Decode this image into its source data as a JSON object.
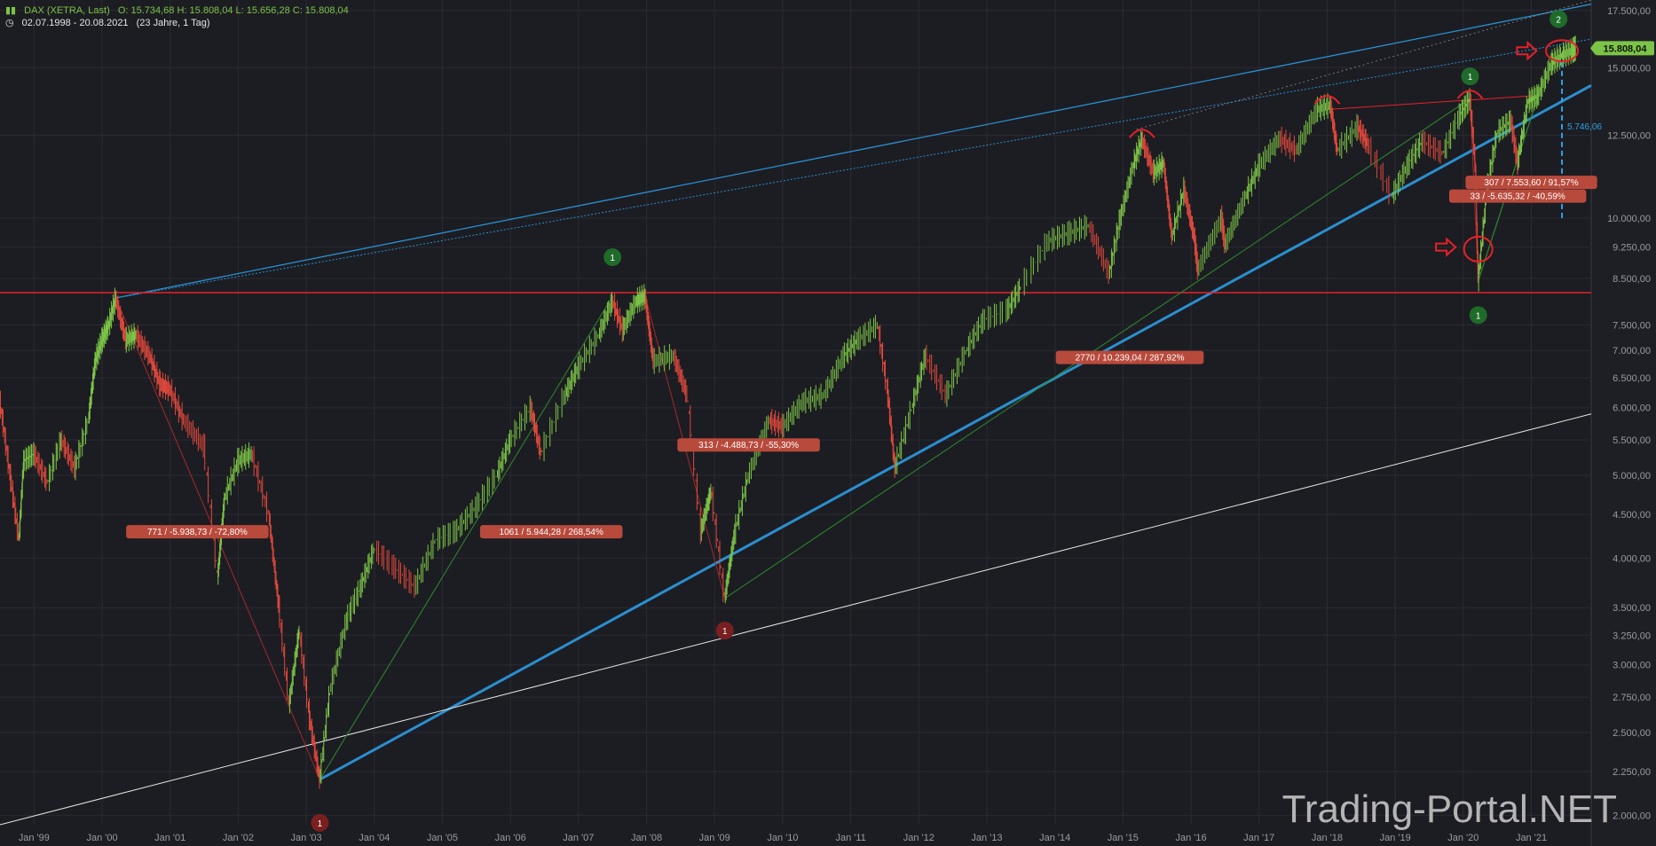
{
  "header": {
    "symbol": "DAX (XETRA, Last)",
    "ohlc": "O: 15.734,68  H: 15.808,04  L: 15.656,28  C: 15.808,04",
    "range": "02.07.1998 - 20.08.2021",
    "duration": "(23 Jahre, 1 Tag)",
    "icons": [
      "candlestick-icon",
      "clock-icon"
    ]
  },
  "watermark": "Trading-Portal.NET",
  "colors": {
    "background": "#1c1d22",
    "up": "#7cc447",
    "down": "#e0483c",
    "trend_blue": "#2a8fd0",
    "resistance_red": "#e8202a",
    "green_line": "#2e8b2e",
    "label_bg": "#b84a3c",
    "price_badge": "#7cc447"
  },
  "chart_data": {
    "type": "line",
    "title": "DAX (XETRA, Last)",
    "x_range": [
      "1998-07-02",
      "2021-08-20"
    ],
    "y_scale": "log",
    "ylim": [
      1950,
      18000
    ],
    "y_ticks": [
      "2.000,00",
      "2.250,00",
      "2.500,00",
      "2.750,00",
      "3.000,00",
      "3.250,00",
      "3.500,00",
      "4.000,00",
      "4.500,00",
      "5.000,00",
      "5.500,00",
      "6.000,00",
      "6.500,00",
      "7.000,00",
      "7.500,00",
      "8.500,00",
      "9.250,00",
      "10.000,00",
      "12.500,00",
      "15.000,00",
      "17.500,00"
    ],
    "y_tick_values": [
      2000,
      2250,
      2500,
      2750,
      3000,
      3250,
      3500,
      4000,
      4500,
      5000,
      5500,
      6000,
      6500,
      7000,
      7500,
      8500,
      9250,
      10000,
      12500,
      15000,
      17500
    ],
    "x_ticks": [
      "Jan '99",
      "Jan '00",
      "Jan '01",
      "Jan '02",
      "Jan '03",
      "Jan '04",
      "Jan '05",
      "Jan '06",
      "Jan '07",
      "Jan '08",
      "Jan '09",
      "Jan '10",
      "Jan '11",
      "Jan '12",
      "Jan '13",
      "Jan '14",
      "Jan '15",
      "Jan '16",
      "Jan '17",
      "Jan '18",
      "Jan '19",
      "Jan '20",
      "Jan '21"
    ],
    "x_tick_values": [
      1999,
      2000,
      2001,
      2002,
      2003,
      2004,
      2005,
      2006,
      2007,
      2008,
      2009,
      2010,
      2011,
      2012,
      2013,
      2014,
      2015,
      2016,
      2017,
      2018,
      2019,
      2020,
      2021
    ],
    "last_price": "15.808,04",
    "series": [
      {
        "points": [
          [
            1998.5,
            6100
          ],
          [
            1998.65,
            5000
          ],
          [
            1998.78,
            4200
          ],
          [
            1998.85,
            5200
          ],
          [
            1999.0,
            5300
          ],
          [
            1999.2,
            4900
          ],
          [
            1999.4,
            5500
          ],
          [
            1999.6,
            5100
          ],
          [
            1999.8,
            5800
          ],
          [
            1999.9,
            6800
          ],
          [
            2000.0,
            7200
          ],
          [
            2000.1,
            7500
          ],
          [
            2000.2,
            8064
          ],
          [
            2000.35,
            7200
          ],
          [
            2000.5,
            7300
          ],
          [
            2000.7,
            6900
          ],
          [
            2000.85,
            6400
          ],
          [
            2001.0,
            6300
          ],
          [
            2001.2,
            5800
          ],
          [
            2001.5,
            5400
          ],
          [
            2001.7,
            3800
          ],
          [
            2001.8,
            4700
          ],
          [
            2002.0,
            5200
          ],
          [
            2002.2,
            5300
          ],
          [
            2002.45,
            4500
          ],
          [
            2002.6,
            3500
          ],
          [
            2002.75,
            2700
          ],
          [
            2002.9,
            3300
          ],
          [
            2003.05,
            2600
          ],
          [
            2003.2,
            2203
          ],
          [
            2003.35,
            2800
          ],
          [
            2003.6,
            3400
          ],
          [
            2003.8,
            3700
          ],
          [
            2004.0,
            4100
          ],
          [
            2004.3,
            3900
          ],
          [
            2004.6,
            3700
          ],
          [
            2004.9,
            4200
          ],
          [
            2005.2,
            4300
          ],
          [
            2005.5,
            4600
          ],
          [
            2005.8,
            5000
          ],
          [
            2006.0,
            5500
          ],
          [
            2006.3,
            6000
          ],
          [
            2006.45,
            5300
          ],
          [
            2006.8,
            6200
          ],
          [
            2007.0,
            6700
          ],
          [
            2007.3,
            7300
          ],
          [
            2007.5,
            8000
          ],
          [
            2007.65,
            7400
          ],
          [
            2007.85,
            8000
          ],
          [
            2007.98,
            8100
          ],
          [
            2008.1,
            6800
          ],
          [
            2008.4,
            6900
          ],
          [
            2008.6,
            6200
          ],
          [
            2008.8,
            4300
          ],
          [
            2008.95,
            4800
          ],
          [
            2009.15,
            3589
          ],
          [
            2009.3,
            4300
          ],
          [
            2009.5,
            5000
          ],
          [
            2009.8,
            5800
          ],
          [
            2010.0,
            5700
          ],
          [
            2010.3,
            6100
          ],
          [
            2010.6,
            6200
          ],
          [
            2010.9,
            6900
          ],
          [
            2011.1,
            7200
          ],
          [
            2011.4,
            7500
          ],
          [
            2011.55,
            6200
          ],
          [
            2011.65,
            5100
          ],
          [
            2011.9,
            6000
          ],
          [
            2012.1,
            6900
          ],
          [
            2012.4,
            6200
          ],
          [
            2012.7,
            7000
          ],
          [
            2012.95,
            7600
          ],
          [
            2013.3,
            7800
          ],
          [
            2013.5,
            8300
          ],
          [
            2013.9,
            9400
          ],
          [
            2014.2,
            9600
          ],
          [
            2014.5,
            9800
          ],
          [
            2014.8,
            8600
          ],
          [
            2014.95,
            9900
          ],
          [
            2015.15,
            11500
          ],
          [
            2015.28,
            12374
          ],
          [
            2015.45,
            11300
          ],
          [
            2015.6,
            11600
          ],
          [
            2015.72,
            9500
          ],
          [
            2015.9,
            10800
          ],
          [
            2016.05,
            9500
          ],
          [
            2016.1,
            8700
          ],
          [
            2016.45,
            10000
          ],
          [
            2016.5,
            9300
          ],
          [
            2016.8,
            10600
          ],
          [
            2017.0,
            11500
          ],
          [
            2017.3,
            12400
          ],
          [
            2017.55,
            12000
          ],
          [
            2017.85,
            13400
          ],
          [
            2018.05,
            13559
          ],
          [
            2018.15,
            12000
          ],
          [
            2018.45,
            12800
          ],
          [
            2018.6,
            12200
          ],
          [
            2018.95,
            10600
          ],
          [
            2019.2,
            11600
          ],
          [
            2019.4,
            12300
          ],
          [
            2019.7,
            11900
          ],
          [
            2019.95,
            13200
          ],
          [
            2020.1,
            13795
          ],
          [
            2020.18,
            11500
          ],
          [
            2020.22,
            8442
          ],
          [
            2020.35,
            10800
          ],
          [
            2020.5,
            12600
          ],
          [
            2020.7,
            13000
          ],
          [
            2020.8,
            11600
          ],
          [
            2020.95,
            13700
          ],
          [
            2021.1,
            13900
          ],
          [
            2021.3,
            15200
          ],
          [
            2021.45,
            15500
          ],
          [
            2021.6,
            15700
          ],
          [
            2021.65,
            15808
          ]
        ]
      }
    ],
    "annotations": [
      {
        "text": "771 / -5.938,73 / -72,80%"
      },
      {
        "text": "1061 / 5.944,28 / 268,54%"
      },
      {
        "text": "313 / -4.488,73 / -55,30%"
      },
      {
        "text": "2770 / 10.239,04 / 287,92%"
      },
      {
        "text": "307 / 7.553,60 / 91,57%"
      },
      {
        "text": "33 / -5.635,32 / -40,59%"
      },
      {
        "text": "5.746,06"
      }
    ],
    "markers": [
      {
        "label": "1",
        "color": "red"
      },
      {
        "label": "1",
        "color": "green"
      },
      {
        "label": "1",
        "color": "red"
      },
      {
        "label": "1",
        "color": "green"
      },
      {
        "label": "1",
        "color": "green"
      },
      {
        "label": "2",
        "color": "green"
      }
    ]
  }
}
